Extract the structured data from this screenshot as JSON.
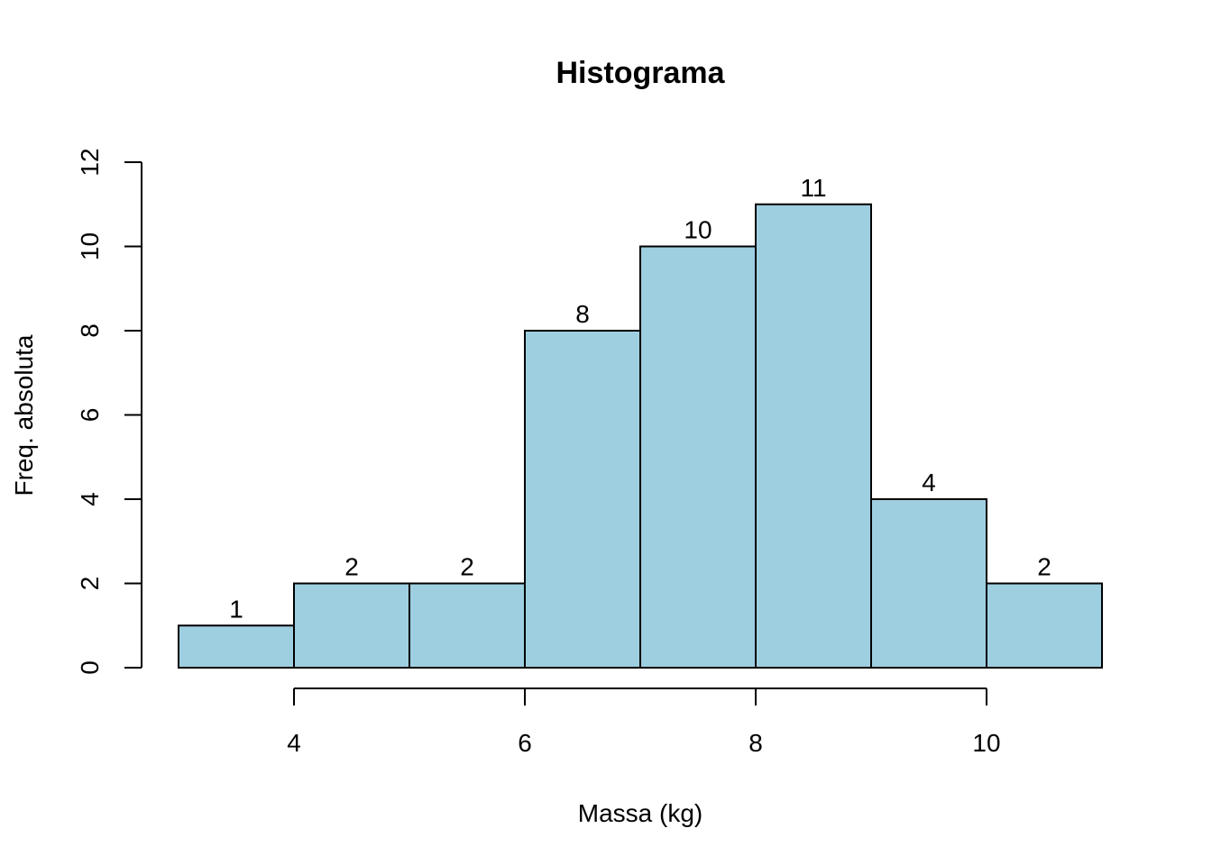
{
  "chart_data": {
    "type": "bar",
    "title": "Histograma",
    "xlabel": "Massa (kg)",
    "ylabel": "Freq. absoluta",
    "bins": [
      [
        3,
        4
      ],
      [
        4,
        5
      ],
      [
        5,
        6
      ],
      [
        6,
        7
      ],
      [
        7,
        8
      ],
      [
        8,
        9
      ],
      [
        9,
        10
      ],
      [
        10,
        11
      ]
    ],
    "values": [
      1,
      2,
      2,
      8,
      10,
      11,
      4,
      2
    ],
    "data_labels": [
      "1",
      "2",
      "2",
      "8",
      "10",
      "11",
      "4",
      "2"
    ],
    "xlim": [
      3,
      11
    ],
    "ylim": [
      0,
      12
    ],
    "x_ticks": [
      4,
      6,
      8,
      10
    ],
    "x_tick_labels": [
      "4",
      "6",
      "8",
      "10"
    ],
    "y_ticks": [
      0,
      2,
      4,
      6,
      8,
      10,
      12
    ],
    "y_tick_labels": [
      "0",
      "2",
      "4",
      "6",
      "8",
      "10",
      "12"
    ],
    "bar_color": "#9ecfe1",
    "grid": false
  }
}
